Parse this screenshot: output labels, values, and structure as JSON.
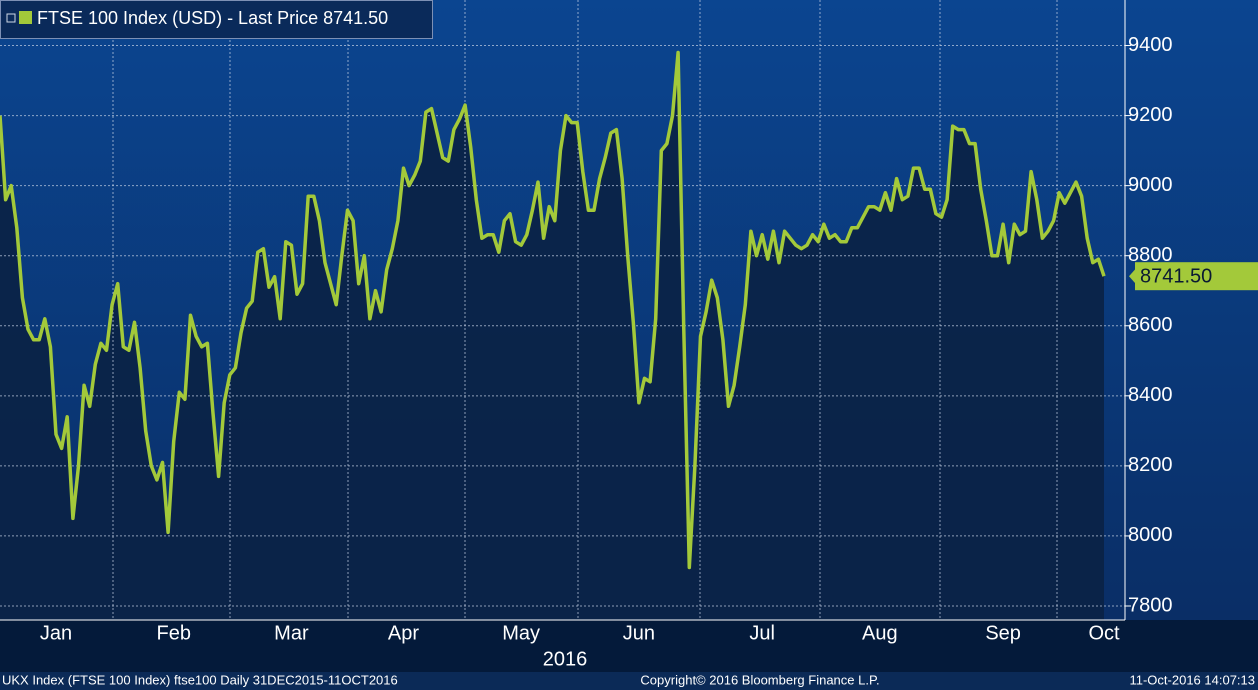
{
  "chart_data": {
    "type": "line",
    "categories": [
      null,
      null,
      null,
      null,
      null,
      null,
      null,
      null,
      null,
      null,
      "Jan",
      null,
      null,
      null,
      null,
      null,
      null,
      null,
      null,
      null,
      null,
      null,
      null,
      null,
      null,
      null,
      null,
      null,
      null,
      null,
      null,
      "Feb",
      null,
      null,
      null,
      null,
      null,
      null,
      null,
      null,
      null,
      null,
      null,
      null,
      null,
      null,
      null,
      null,
      null,
      null,
      null,
      null,
      "Mar",
      null,
      null,
      null,
      null,
      null,
      null,
      null,
      null,
      null,
      null,
      null,
      null,
      null,
      null,
      null,
      null,
      null,
      null,
      null,
      "Apr",
      null,
      null,
      null,
      null,
      null,
      null,
      null,
      null,
      null,
      null,
      null,
      null,
      null,
      null,
      null,
      null,
      null,
      null,
      null,
      null,
      "May",
      null,
      null,
      null,
      null,
      null,
      null,
      null,
      null,
      null,
      null,
      null,
      null,
      null,
      null,
      null,
      null,
      null,
      null,
      null,
      null,
      "Jun",
      null,
      null,
      null,
      null,
      null,
      null,
      null,
      null,
      null,
      null,
      null,
      null,
      null,
      null,
      null,
      null,
      null,
      null,
      null,
      null,
      null,
      "Jul",
      null,
      null,
      null,
      null,
      null,
      null,
      null,
      null,
      null,
      null,
      null,
      null,
      null,
      null,
      null,
      null,
      null,
      null,
      null,
      null,
      "Aug",
      null,
      null,
      null,
      null,
      null,
      null,
      null,
      null,
      null,
      null,
      null,
      null,
      null,
      null,
      null,
      null,
      null,
      null,
      null,
      null,
      null,
      "Sep",
      null,
      null,
      null,
      null,
      null,
      null,
      null,
      null,
      null,
      null,
      null,
      null,
      null,
      null,
      null,
      null,
      null,
      "Oct"
    ],
    "xlabel": "2016",
    "series": [
      {
        "name": "FTSE 100 Index (USD) - Last Price 8741.50",
        "color": "#a3c93a",
        "values": [
          9200,
          8960,
          9000,
          8880,
          8680,
          8590,
          8560,
          8560,
          8620,
          8540,
          8290,
          8250,
          8340,
          8050,
          8200,
          8430,
          8370,
          8490,
          8550,
          8530,
          8660,
          8720,
          8540,
          8530,
          8610,
          8480,
          8300,
          8200,
          8160,
          8210,
          8010,
          8270,
          8410,
          8390,
          8630,
          8570,
          8540,
          8550,
          8350,
          8170,
          8380,
          8460,
          8480,
          8580,
          8650,
          8670,
          8810,
          8820,
          8710,
          8740,
          8620,
          8840,
          8830,
          8690,
          8720,
          8970,
          8970,
          8900,
          8780,
          8720,
          8660,
          8800,
          8930,
          8900,
          8720,
          8800,
          8620,
          8700,
          8640,
          8760,
          8820,
          8900,
          9050,
          9000,
          9030,
          9070,
          9210,
          9220,
          9150,
          9080,
          9070,
          9160,
          9190,
          9230,
          9110,
          8960,
          8850,
          8860,
          8860,
          8810,
          8900,
          8920,
          8840,
          8830,
          8860,
          8930,
          9010,
          8850,
          8940,
          8900,
          9100,
          9200,
          9180,
          9180,
          9040,
          8930,
          8930,
          9020,
          9080,
          9150,
          9160,
          9020,
          8800,
          8610,
          8380,
          8450,
          8440,
          8620,
          9100,
          9120,
          9200,
          9380,
          8600,
          7910,
          8200,
          8570,
          8640,
          8730,
          8680,
          8560,
          8370,
          8430,
          8540,
          8660,
          8870,
          8800,
          8860,
          8790,
          8870,
          8780,
          8870,
          8850,
          8830,
          8820,
          8830,
          8860,
          8840,
          8890,
          8850,
          8860,
          8840,
          8840,
          8880,
          8880,
          8910,
          8940,
          8940,
          8930,
          8980,
          8930,
          9020,
          8960,
          8970,
          9050,
          9050,
          8990,
          8990,
          8920,
          8910,
          8960,
          9170,
          9160,
          9160,
          9120,
          9120,
          8990,
          8900,
          8800,
          8800,
          8890,
          8780,
          8890,
          8860,
          8870,
          9040,
          8960,
          8850,
          8870,
          8900,
          8980,
          8950,
          8980,
          9010,
          8970,
          8850,
          8780,
          8790,
          8741.5
        ]
      }
    ],
    "last_price_label": "8741.50",
    "ylim": [
      7760,
      9530
    ],
    "yticks": [
      7800,
      8000,
      8200,
      8400,
      8600,
      8800,
      9000,
      9200,
      9400
    ],
    "grid": true,
    "footer": [
      "UKX Index (FTSE 100 Index) ftse100  Daily 31DEC2015-11OCT2016",
      "Copyright© 2016 Bloomberg Finance L.P.",
      "11-Oct-2016 14:07:13"
    ]
  }
}
